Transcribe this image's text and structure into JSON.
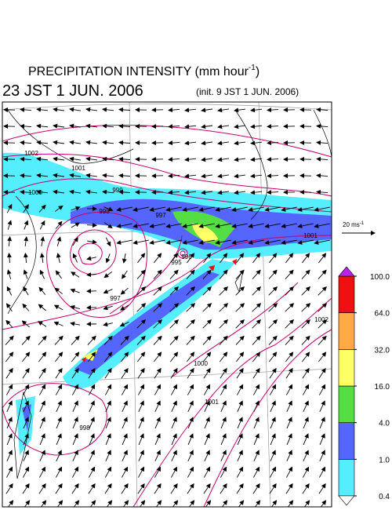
{
  "header": {
    "title": "PRECIPITATION INTENSITY (mm hour",
    "title_exponent": "-1",
    "title_end": ")",
    "valid_time": "23 JST 1 JUN. 2006",
    "init_time": "(init. 9 JST 1 JUN. 2006)"
  },
  "wind_scale": {
    "label": "20 ms",
    "exponent": "-1"
  },
  "colorbar": {
    "ticks": [
      {
        "value": 0.4,
        "label": "0.4"
      },
      {
        "value": 1,
        "label": "1.0"
      },
      {
        "value": 4,
        "label": "4.0"
      },
      {
        "value": 16,
        "label": "16.0"
      },
      {
        "value": 32,
        "label": "32.0"
      },
      {
        "value": 64,
        "label": "64.0"
      },
      {
        "value": 100,
        "label": "100.0"
      }
    ],
    "colors": [
      "#55eeff",
      "#5566ff",
      "#55dd44",
      "#ffff66",
      "#ffaa44",
      "#ee1111"
    ],
    "over_color": "#bb22ee",
    "under_color": "#ffffff"
  },
  "isobars": [
    "1002",
    "1001",
    "1000",
    "999",
    "998",
    "997",
    "996",
    "995",
    "997",
    "998",
    "1002",
    "1001",
    "1000",
    "1001"
  ]
}
